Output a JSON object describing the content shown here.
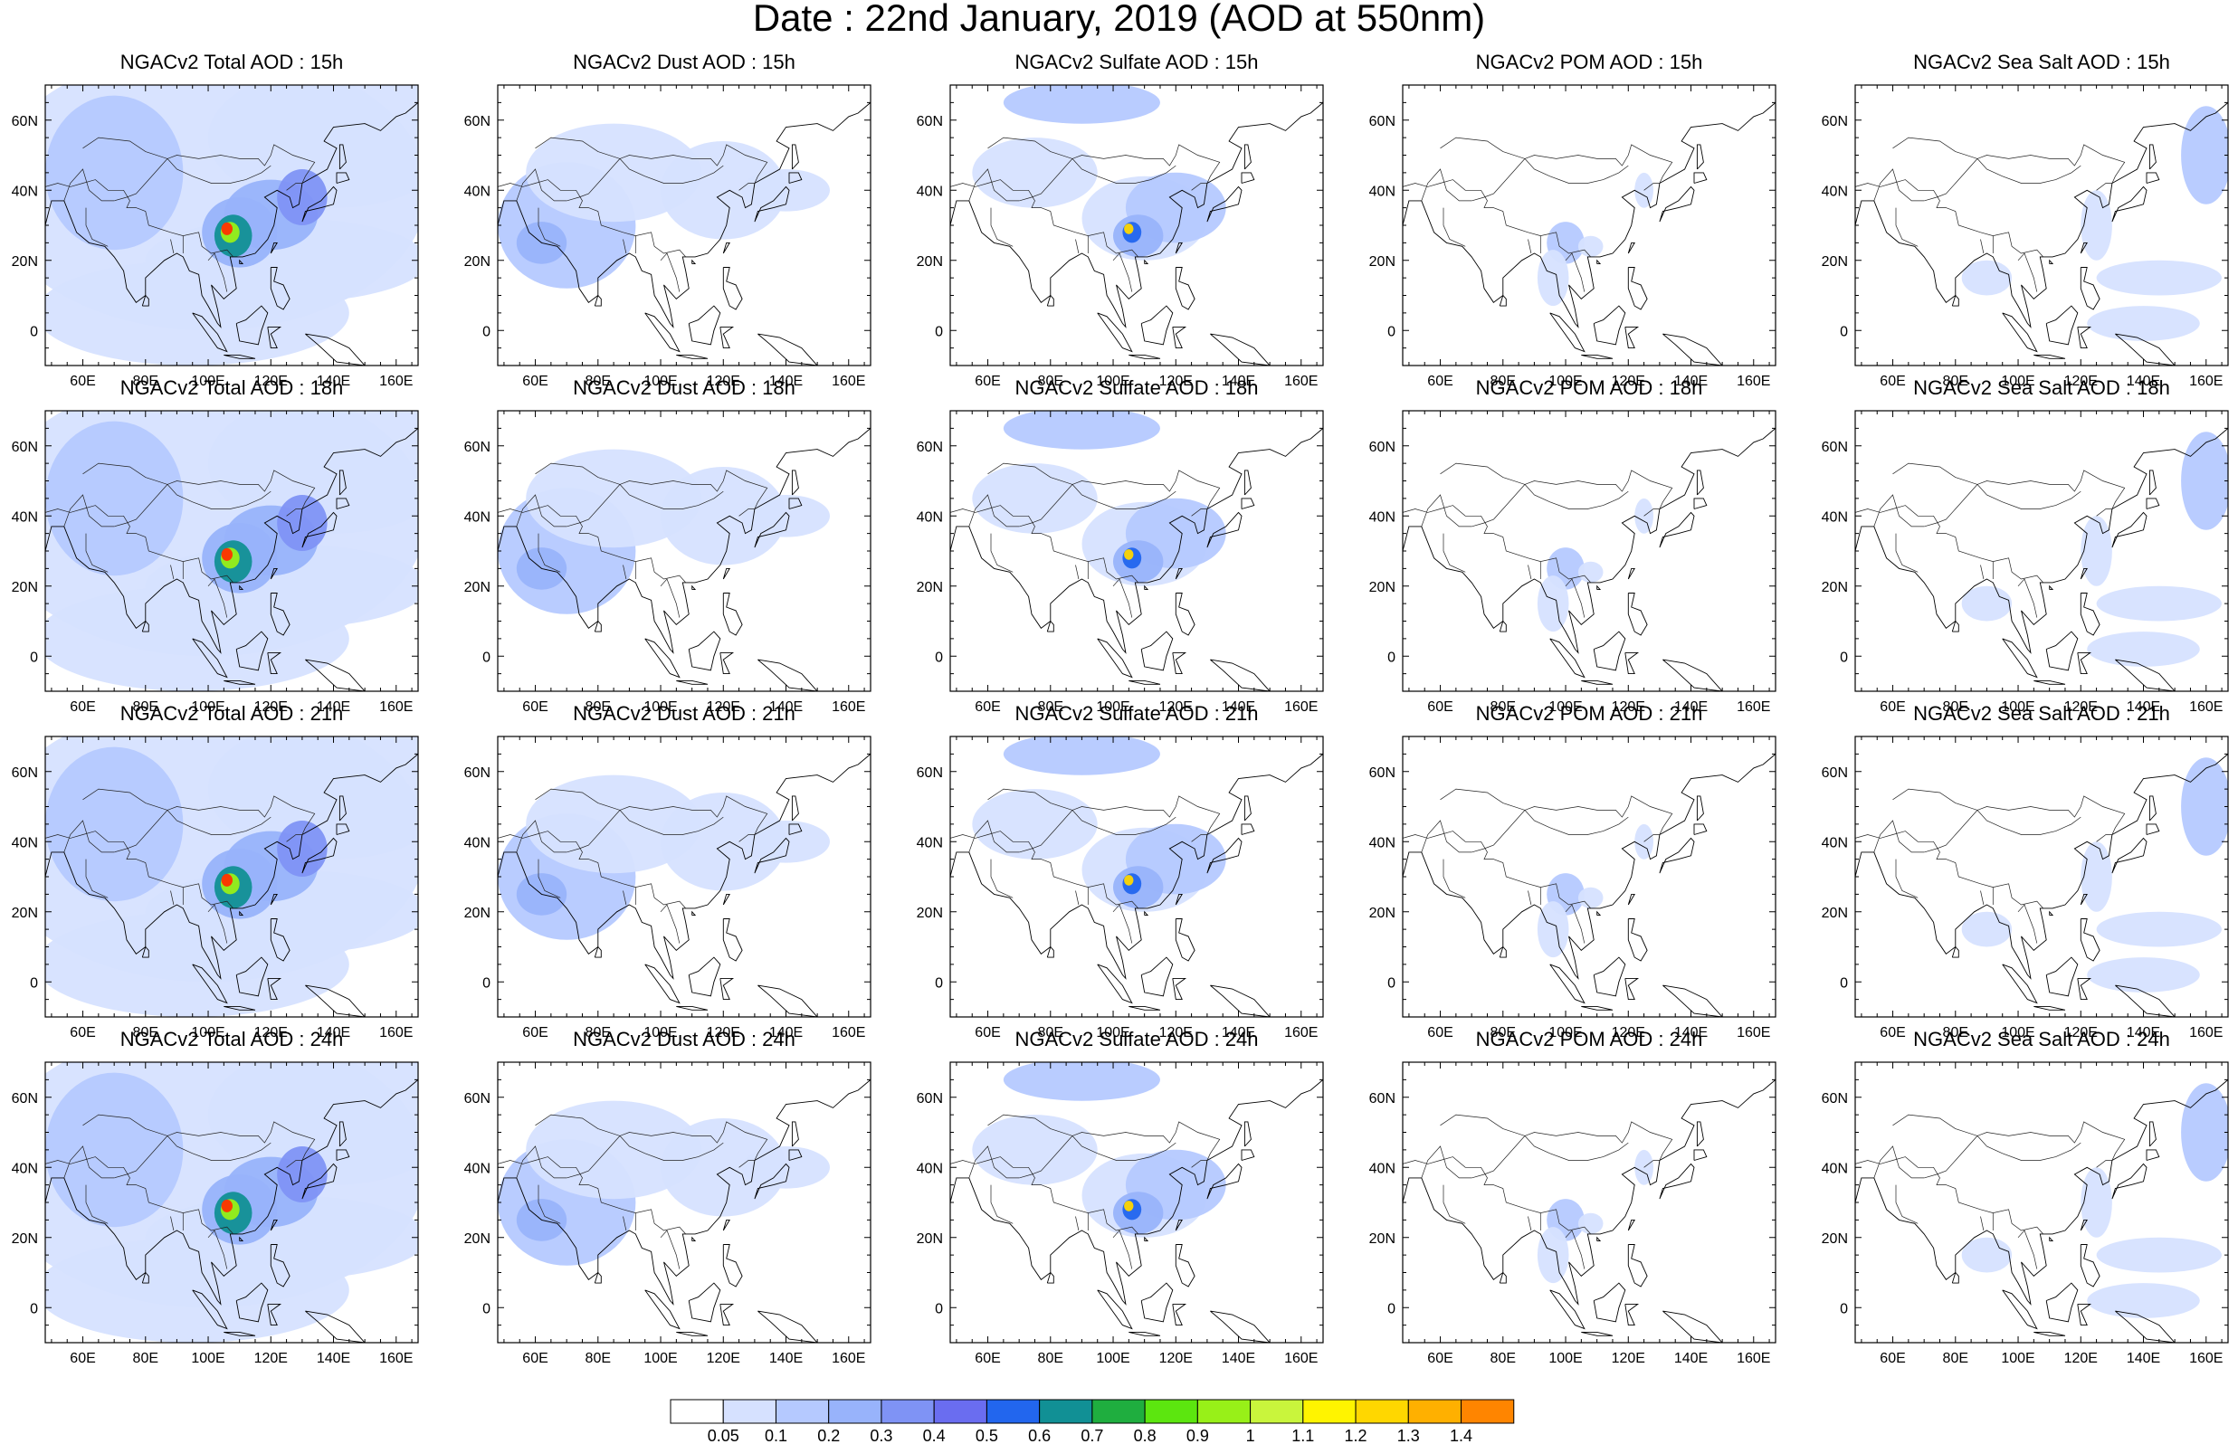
{
  "title": "Date : 22nd January, 2019 (AOD at 550nm)",
  "axes": {
    "x_ticks": [
      "60E",
      "80E",
      "100E",
      "120E",
      "140E",
      "160E"
    ],
    "y_ticks": [
      "60N",
      "40N",
      "20N",
      "0"
    ],
    "x_values": [
      60,
      80,
      100,
      120,
      140,
      160
    ],
    "y_values": [
      60,
      40,
      20,
      0
    ],
    "lon_range": [
      48,
      167
    ],
    "lat_range": [
      -10,
      70
    ]
  },
  "rows": [
    {
      "hour": "15h",
      "panels": [
        {
          "title": "NGACv2 Total AOD : 15h",
          "species": "total"
        },
        {
          "title": "NGACv2 Dust AOD : 15h",
          "species": "dust"
        },
        {
          "title": "NGACv2 Sulfate AOD : 15h",
          "species": "sulfate"
        },
        {
          "title": "NGACv2 POM AOD : 15h",
          "species": "pom"
        },
        {
          "title": "NGACv2 Sea Salt AOD : 15h",
          "species": "seasalt"
        }
      ]
    },
    {
      "hour": "18h",
      "panels": [
        {
          "title": "NGACv2 Total AOD : 18h",
          "species": "total"
        },
        {
          "title": "NGACv2 Dust AOD : 18h",
          "species": "dust"
        },
        {
          "title": "NGACv2 Sulfate AOD : 18h",
          "species": "sulfate"
        },
        {
          "title": "NGACv2 POM AOD : 18h",
          "species": "pom"
        },
        {
          "title": "NGACv2 Sea Salt AOD : 18h",
          "species": "seasalt"
        }
      ]
    },
    {
      "hour": "21h",
      "panels": [
        {
          "title": "NGACv2 Total AOD : 21h",
          "species": "total"
        },
        {
          "title": "NGACv2 Dust AOD : 21h",
          "species": "dust"
        },
        {
          "title": "NGACv2 Sulfate AOD : 21h",
          "species": "sulfate"
        },
        {
          "title": "NGACv2 POM AOD : 21h",
          "species": "pom"
        },
        {
          "title": "NGACv2 Sea Salt AOD : 21h",
          "species": "seasalt"
        }
      ]
    },
    {
      "hour": "24h",
      "panels": [
        {
          "title": "NGACv2 Total AOD : 24h",
          "species": "total"
        },
        {
          "title": "NGACv2 Dust AOD : 24h",
          "species": "dust"
        },
        {
          "title": "NGACv2 Sulfate AOD : 24h",
          "species": "sulfate"
        },
        {
          "title": "NGACv2 POM AOD : 24h",
          "species": "pom"
        },
        {
          "title": "NGACv2 Sea Salt  AOD : 24h",
          "species": "seasalt"
        }
      ]
    }
  ],
  "colorbar": {
    "labels": [
      "0.05",
      "0.1",
      "0.2",
      "0.3",
      "0.4",
      "0.5",
      "0.6",
      "0.7",
      "0.8",
      "0.9",
      "1",
      "1.1",
      "1.2",
      "1.3",
      "1.4"
    ],
    "colors": [
      "#ffffff",
      "#d6e1ff",
      "#b5c9ff",
      "#98b3fb",
      "#7f93f5",
      "#6a6df0",
      "#2266ee",
      "#119095",
      "#1fae3f",
      "#5ce60f",
      "#98f018",
      "#c9f53c",
      "#fff400",
      "#ffd700",
      "#ffb000",
      "#ff8500",
      "#ff3000"
    ]
  }
}
